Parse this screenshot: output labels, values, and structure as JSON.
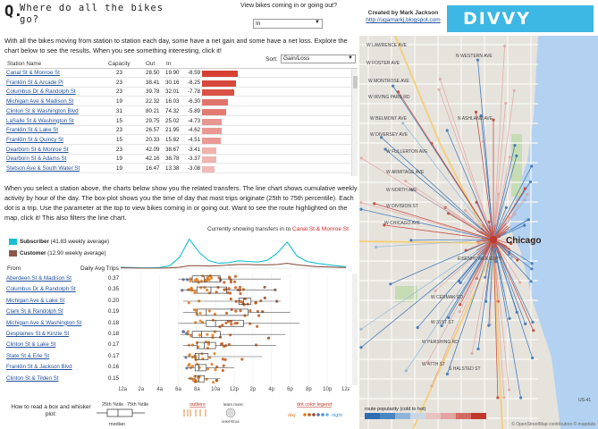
{
  "header": {
    "title_icon": "Q.",
    "title": "Where do all the bikes go?",
    "param_label": "View bikes coming in or going out?",
    "param_value": "In",
    "credit_line1": "Created by Mark Jackson",
    "credit_link": "http://ugamarkj.blogspot.com",
    "logo": "DIVVY"
  },
  "intro": "With all the bikes moving from station to station each day, some have a net gain and some have a net loss. Explore the chart below to see the results. When you see something interesting, click it!",
  "table": {
    "sort_label": "Sort:",
    "sort_value": "Gain/Loss",
    "headers": {
      "station": "Station Name",
      "capacity": "Capacity",
      "out": "Out",
      "in": "In"
    },
    "rows": [
      {
        "name": "Canal St & Monroe St",
        "capacity": "23",
        "out": "28.50",
        "in": "19.90",
        "net": "-8.59",
        "v": 8.59
      },
      {
        "name": "Franklin St & Arcade Pl",
        "capacity": "23",
        "out": "38.41",
        "in": "30.16",
        "net": "-8.25",
        "v": 8.25
      },
      {
        "name": "Columbus Dr & Randolph St",
        "capacity": "23",
        "out": "39.78",
        "in": "32.01",
        "net": "-7.78",
        "v": 7.78
      },
      {
        "name": "Michigan Ave & Madison St",
        "capacity": "19",
        "out": "22.32",
        "in": "16.03",
        "net": "-6.30",
        "v": 6.3
      },
      {
        "name": "Clinton St & Washington Blvd",
        "capacity": "31",
        "out": "80.21",
        "in": "74.32",
        "net": "-5.89",
        "v": 5.89
      },
      {
        "name": "LaSalle St & Washington St",
        "capacity": "15",
        "out": "29.75",
        "in": "25.02",
        "net": "-4.73",
        "v": 4.73
      },
      {
        "name": "Franklin St & Lake St",
        "capacity": "23",
        "out": "26.57",
        "in": "21.95",
        "net": "-4.62",
        "v": 4.62
      },
      {
        "name": "Franklin St & Quincy St",
        "capacity": "15",
        "out": "20.33",
        "in": "15.82",
        "net": "-4.51",
        "v": 4.51
      },
      {
        "name": "Dearborn St & Monroe St",
        "capacity": "23",
        "out": "42.09",
        "in": "38.67",
        "net": "-3.41",
        "v": 3.41
      },
      {
        "name": "Dearborn St & Adams St",
        "capacity": "19",
        "out": "42.16",
        "in": "38.78",
        "net": "-3.37",
        "v": 3.37
      },
      {
        "name": "Stetson Ave & South Water St",
        "capacity": "19",
        "out": "16.47",
        "in": "13.38",
        "net": "-3.08",
        "v": 3.08
      }
    ]
  },
  "intro2": "When you select a station above, the charts below show you the related transfers. The line chart shows cumulative weekly activity by hour of the day. The box-plot shows you the time of day that most trips originate (25th to 75th percentile). Each dot is a trip. Use the parameter at the top to view bikes coming in or going out. Want to see the route highlighted on the map, click it! This also filters the line chart.",
  "linechart": {
    "current_prefix": "Currently showing transfers in to",
    "current_station": "Canal St & Monroe St",
    "legend": [
      {
        "label": "Subscriber",
        "note": "(41.83 weekly average)",
        "color": "#17becf"
      },
      {
        "label": "Customer",
        "note": "(12.90 weekly average)",
        "color": "#8c564b"
      }
    ],
    "colors": {
      "subscriber": "#17becf",
      "customer": "#8c564b"
    }
  },
  "chart_data": {
    "type": "line",
    "x": [
      0,
      1,
      2,
      3,
      4,
      5,
      6,
      7,
      8,
      9,
      10,
      11,
      12,
      13,
      14,
      15,
      16,
      17,
      18,
      19,
      20,
      21,
      22,
      23
    ],
    "series": [
      {
        "name": "Subscriber",
        "values": [
          0.3,
          0.2,
          0.1,
          0.1,
          0.2,
          0.8,
          3.5,
          9.5,
          5.2,
          2.5,
          1.6,
          1.8,
          2.4,
          2.2,
          2.0,
          2.6,
          5.0,
          8.6,
          4.0,
          2.2,
          1.6,
          1.2,
          0.8,
          0.5
        ]
      },
      {
        "name": "Customer",
        "values": [
          0.1,
          0.1,
          0.0,
          0.0,
          0.0,
          0.1,
          0.3,
          0.8,
          0.8,
          0.7,
          0.8,
          1.0,
          1.2,
          1.2,
          1.1,
          1.1,
          1.2,
          1.6,
          1.1,
          0.8,
          0.5,
          0.4,
          0.3,
          0.2
        ]
      }
    ]
  },
  "boxplot": {
    "from_label": "From",
    "daily_label": "Daily Avg Trips",
    "rows": [
      {
        "name": "Aberdeen St & Madison St",
        "avg": "0.37",
        "q1": 7.5,
        "q3": 10.5,
        "med": 8.8,
        "lo": 6.0,
        "hi": 17.0
      },
      {
        "name": "Columbus Dr & Randolph St",
        "avg": "0.35",
        "q1": 8.0,
        "q3": 11.2,
        "med": 9.5,
        "lo": 6.2,
        "hi": 16.5
      },
      {
        "name": "Michigan Ave & Lake St",
        "avg": "0.20",
        "q1": 12.5,
        "q3": 13.8,
        "med": 13.0,
        "lo": 6.5,
        "hi": 17.0
      },
      {
        "name": "Clark St & Randolph St",
        "avg": "0.19",
        "q1": 8.0,
        "q3": 13.5,
        "med": 9.0,
        "lo": 6.5,
        "hi": 18.0
      },
      {
        "name": "Michigan Ave & Washington St",
        "avg": "0.18",
        "q1": 9.0,
        "q3": 13.0,
        "med": 10.0,
        "lo": 6.0,
        "hi": 19.0
      },
      {
        "name": "Desplaines St & Kinzie St",
        "avg": "0.18",
        "q1": 7.5,
        "q3": 10.5,
        "med": 8.5,
        "lo": 6.2,
        "hi": 17.5
      },
      {
        "name": "Clinton St & Lake St",
        "avg": "0.17",
        "q1": 8.0,
        "q3": 10.0,
        "med": 8.8,
        "lo": 6.5,
        "hi": 16.5
      },
      {
        "name": "State St & Erie St",
        "avg": "0.17",
        "q1": 7.8,
        "q3": 9.2,
        "med": 8.2,
        "lo": 6.5,
        "hi": 15.0
      },
      {
        "name": "Franklin St & Jackson Blvd",
        "avg": "0.16",
        "q1": 7.8,
        "q3": 9.0,
        "med": 8.2,
        "lo": 7.0,
        "hi": 12.0
      },
      {
        "name": "Clinton St & Tilden St",
        "avg": "0.15",
        "q1": 7.8,
        "q3": 8.8,
        "med": 8.2,
        "lo": 7.0,
        "hi": 10.5
      }
    ],
    "axis_ticks": [
      "12a",
      "2a",
      "4a",
      "6a",
      "8a",
      "10a",
      "12p",
      "2p",
      "4p",
      "6p",
      "8p",
      "10p",
      "12a"
    ]
  },
  "legend": {
    "how_to": "How to read a box and whisker plot:",
    "p25": "25th %tile",
    "p75": "75th %tile",
    "median": "median",
    "outliers": "outliers",
    "learn_more": "learn more:",
    "wiki": "WIKIPEDIA",
    "dot_legend": "dot color legend",
    "day": "day",
    "night": "night"
  },
  "map": {
    "legend_title": "route popularity (cold to hot)",
    "attribution": "© OpenStreetMap contributors © mapdata",
    "city_label": "Chicago",
    "streets": [
      "W LAWRENCE AVE",
      "W FOSTER AVE",
      "W MONTROSE AVE",
      "W IRVING PARK RD",
      "W BELMONT AVE",
      "W DIVERSEY AVE",
      "W FULLERTON AVE",
      "W ARMITAGE AVE",
      "W NORTH AVE",
      "W DIVISION ST",
      "W CHICAGO AVE",
      "EISENHOWER EXPY",
      "W CERMAK RD",
      "W 31ST ST",
      "W PERSHING RD",
      "W 47TH ST",
      "N WESTERN AVE",
      "N ASHLAND AVE",
      "S HALSTED ST",
      "US-41"
    ]
  }
}
